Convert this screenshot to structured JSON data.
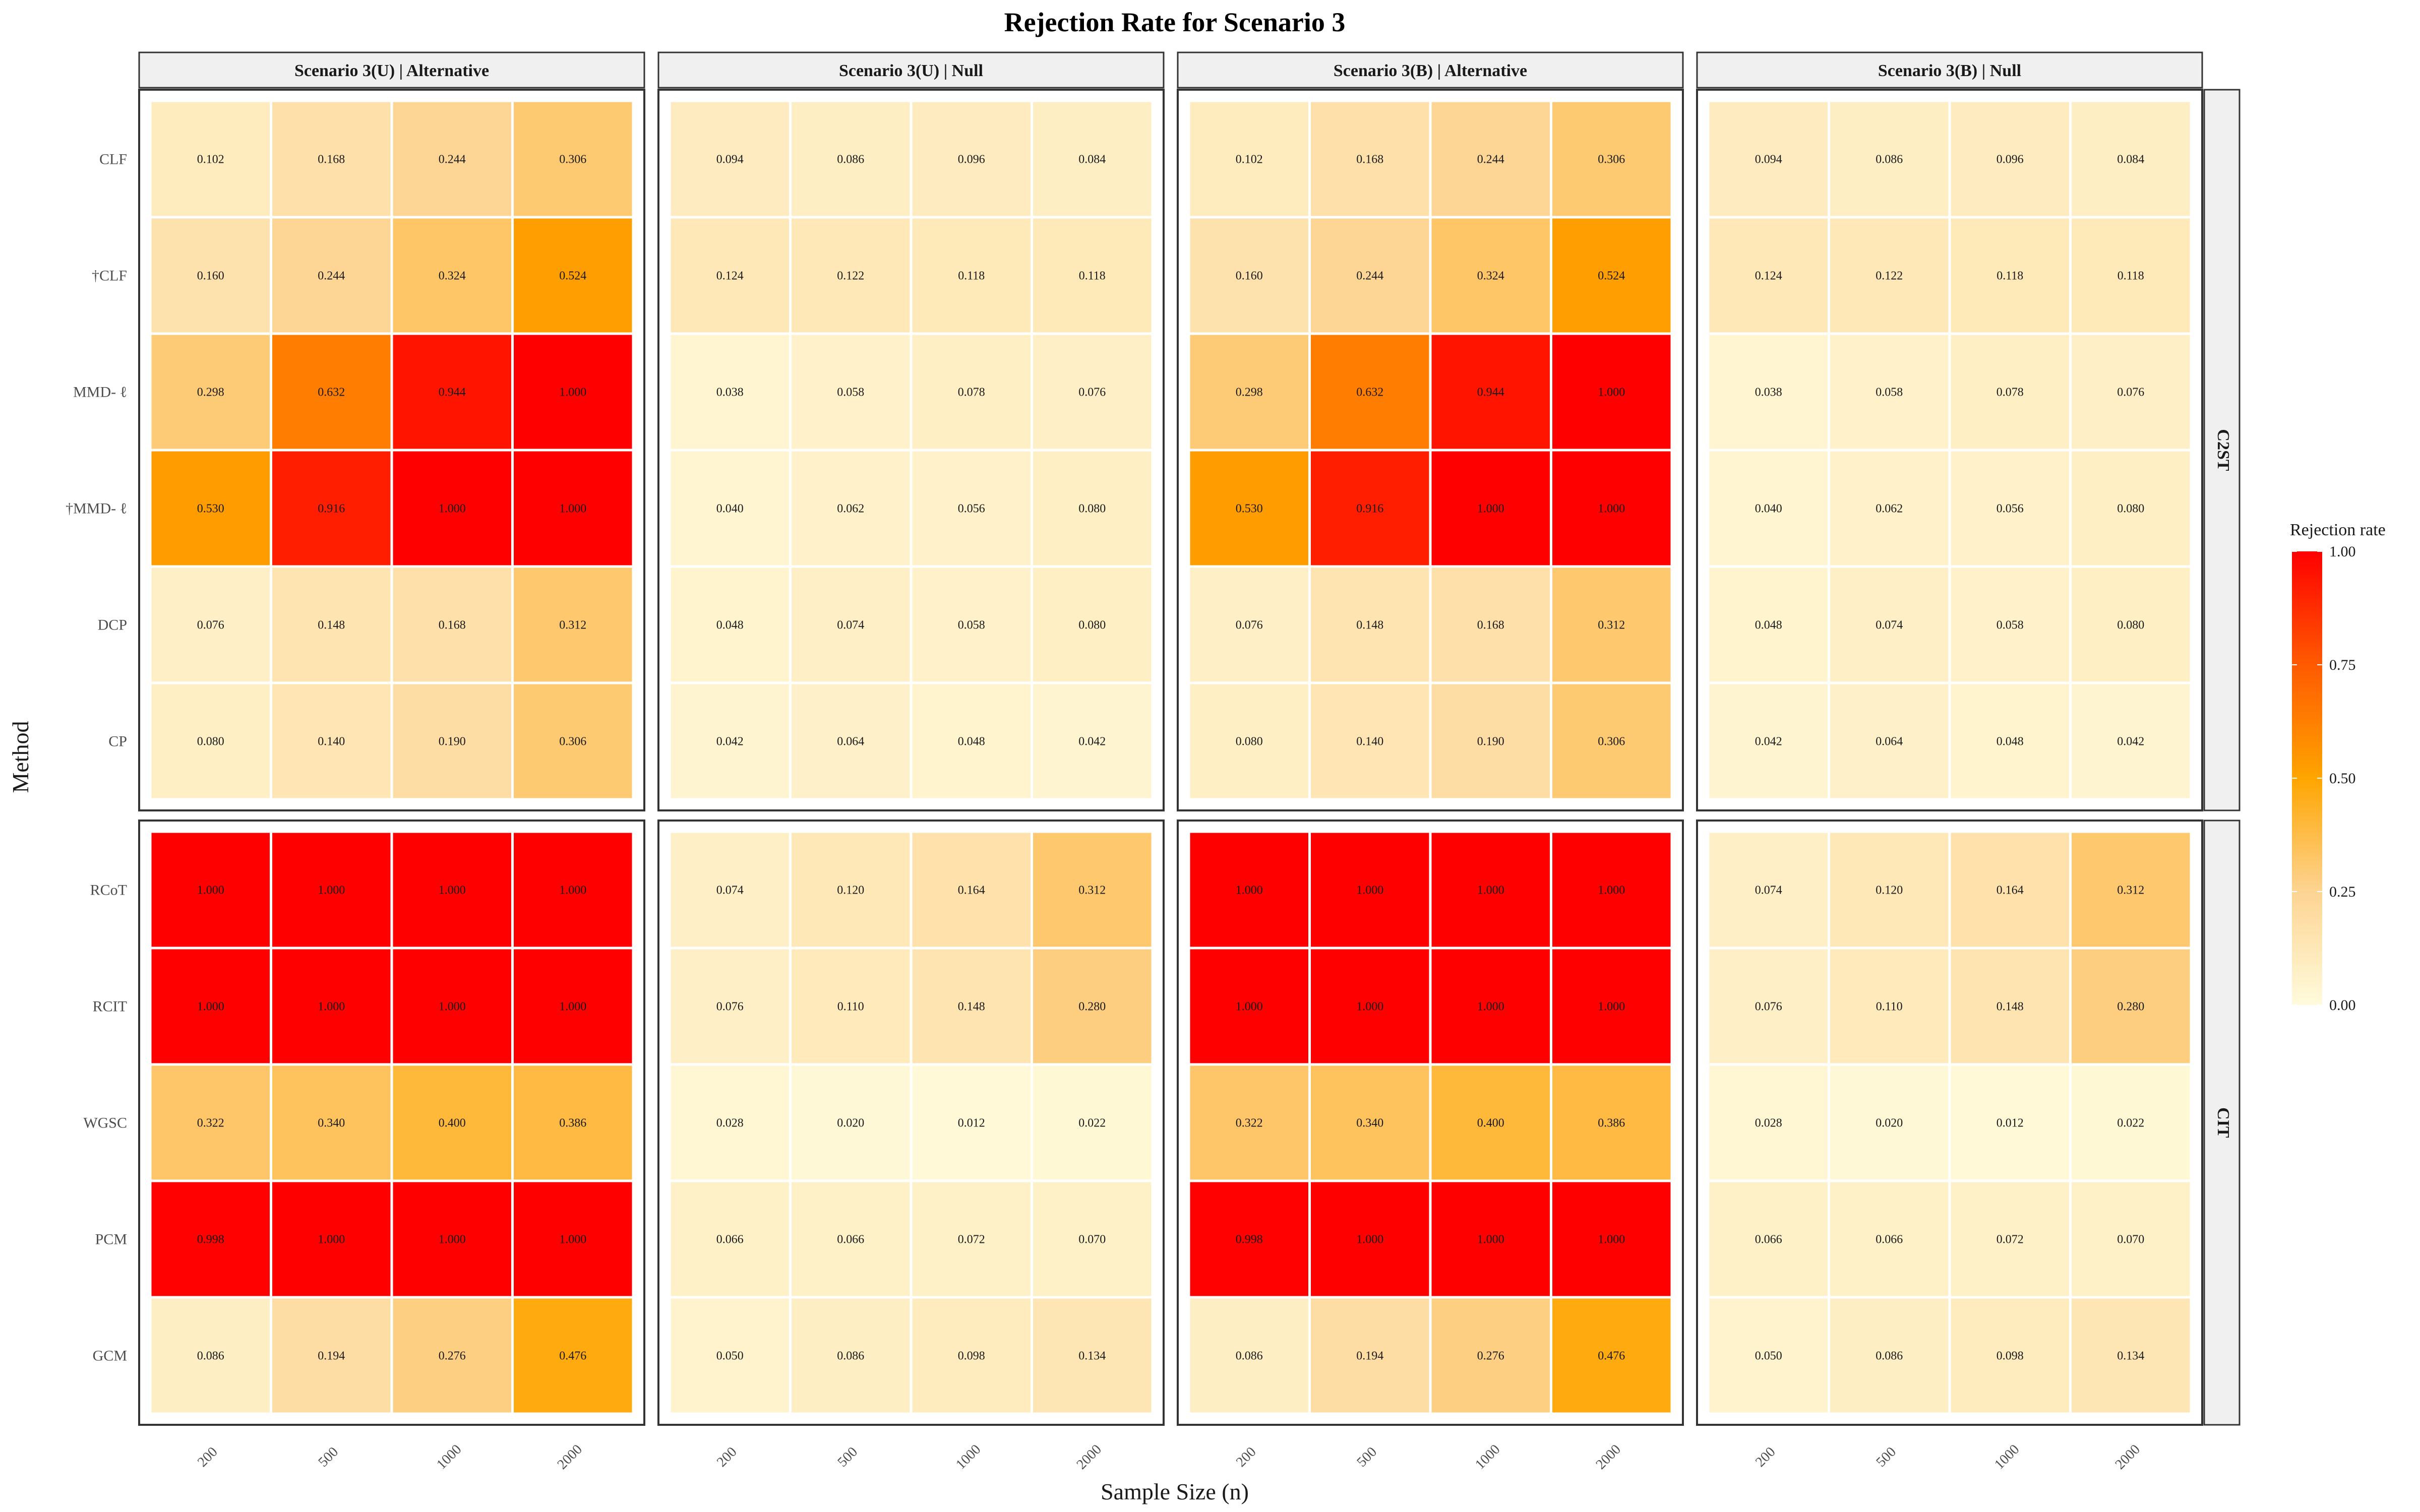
{
  "chart_data": {
    "type": "heatmap",
    "title": "Rejection Rate for Scenario 3",
    "xlabel": "Sample Size (n)",
    "ylabel": "Method",
    "x_categories": [
      "200",
      "500",
      "1000",
      "2000"
    ],
    "column_facets": [
      "Scenario 3(U) | Alternative",
      "Scenario 3(U) | Null",
      "Scenario 3(B) | Alternative",
      "Scenario 3(B) | Null"
    ],
    "row_facets": [
      {
        "name": "C2ST",
        "methods": [
          "CLF",
          "†CLF",
          "MMD- ℓ",
          "†MMD- ℓ",
          "DCP",
          "CP"
        ]
      },
      {
        "name": "CIT",
        "methods": [
          "RCoT",
          "RCIT",
          "WGSC",
          "PCM",
          "GCM"
        ]
      }
    ],
    "values": {
      "Alternative": {
        "CLF": [
          0.102,
          0.168,
          0.244,
          0.306
        ],
        "†CLF": [
          0.16,
          0.244,
          0.324,
          0.524
        ],
        "MMD- ℓ": [
          0.298,
          0.632,
          0.944,
          1.0
        ],
        "†MMD- ℓ": [
          0.53,
          0.916,
          1.0,
          1.0
        ],
        "DCP": [
          0.076,
          0.148,
          0.168,
          0.312
        ],
        "CP": [
          0.08,
          0.14,
          0.19,
          0.306
        ],
        "RCoT": [
          1.0,
          1.0,
          1.0,
          1.0
        ],
        "RCIT": [
          1.0,
          1.0,
          1.0,
          1.0
        ],
        "WGSC": [
          0.322,
          0.34,
          0.4,
          0.386
        ],
        "PCM": [
          0.998,
          1.0,
          1.0,
          1.0
        ],
        "GCM": [
          0.086,
          0.194,
          0.276,
          0.476
        ]
      },
      "Null": {
        "CLF": [
          0.094,
          0.086,
          0.096,
          0.084
        ],
        "†CLF": [
          0.124,
          0.122,
          0.118,
          0.118
        ],
        "MMD- ℓ": [
          0.038,
          0.058,
          0.078,
          0.076
        ],
        "†MMD- ℓ": [
          0.04,
          0.062,
          0.056,
          0.08
        ],
        "DCP": [
          0.048,
          0.074,
          0.058,
          0.08
        ],
        "CP": [
          0.042,
          0.064,
          0.048,
          0.042
        ],
        "RCoT": [
          0.074,
          0.12,
          0.164,
          0.312
        ],
        "RCIT": [
          0.076,
          0.11,
          0.148,
          0.28
        ],
        "WGSC": [
          0.028,
          0.02,
          0.012,
          0.022
        ],
        "PCM": [
          0.066,
          0.066,
          0.072,
          0.07
        ],
        "GCM": [
          0.05,
          0.086,
          0.098,
          0.134
        ]
      }
    },
    "panel_values_source": [
      "Alternative",
      "Null",
      "Alternative",
      "Null"
    ],
    "color_scale": {
      "title": "Rejection rate",
      "min": 0,
      "max": 1,
      "ticks": [
        "0.00",
        "0.25",
        "0.50",
        "0.75",
        "1.00"
      ],
      "stops": [
        {
          "value": 0.0,
          "color": "#fffbdc"
        },
        {
          "value": 0.25,
          "color": "#fdd492"
        },
        {
          "value": 0.5,
          "color": "#ffa500"
        },
        {
          "value": 0.75,
          "color": "#ff5a00"
        },
        {
          "value": 1.0,
          "color": "#ff0000"
        }
      ]
    },
    "legend_position": "right",
    "grid": false
  }
}
